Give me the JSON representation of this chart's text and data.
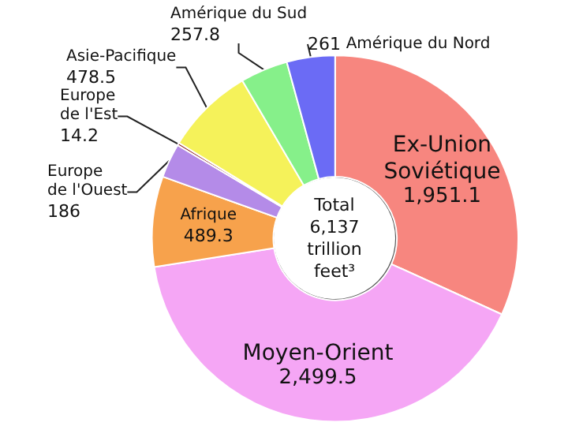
{
  "chart_data": {
    "type": "donut",
    "categories": [
      "Ex-Union Soviétique",
      "Moyen-Orient",
      "Afrique",
      "Europe de l'Ouest",
      "Europe de l'Est",
      "Asie-Pacifique",
      "Amérique du Sud",
      "Amérique du Nord"
    ],
    "values": [
      1951.1,
      2499.5,
      489.3,
      186,
      14.2,
      478.5,
      257.8,
      261
    ],
    "value_labels": [
      "1,951.1",
      "2,499.5",
      "489.3",
      "186",
      "14.2",
      "478.5",
      "257.8",
      "261"
    ],
    "colors": [
      "#f7867f",
      "#f5a6f5",
      "#f7a24c",
      "#b48be8",
      "#8b1a1a",
      "#f5f25a",
      "#86f08a",
      "#6b6bf5"
    ],
    "annotations": [
      "Total\n6,137\ntrillion\nfeet³"
    ]
  }
}
